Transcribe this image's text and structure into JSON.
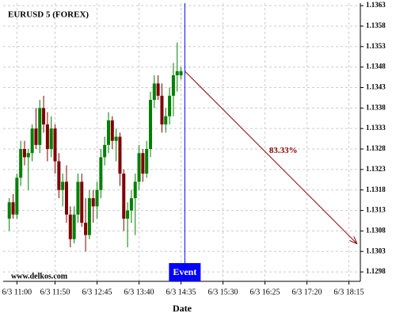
{
  "chart_data": {
    "type": "candlestick",
    "title": "EURUSD 5 (FOREX)",
    "xlabel": "Date",
    "watermark": "www.delkos.com",
    "x": [
      "6/3 10:50",
      "6/3 10:55",
      "6/3 11:00",
      "6/3 11:05",
      "6/3 11:10",
      "6/3 11:15",
      "6/3 11:20",
      "6/3 11:25",
      "6/3 11:30",
      "6/3 11:35",
      "6/3 11:40",
      "6/3 11:45",
      "6/3 11:50",
      "6/3 11:55",
      "6/3 12:00",
      "6/3 12:05",
      "6/3 12:10",
      "6/3 12:15",
      "6/3 12:20",
      "6/3 12:25",
      "6/3 12:30",
      "6/3 12:35",
      "6/3 12:40",
      "6/3 12:45",
      "6/3 12:50",
      "6/3 12:55",
      "6/3 13:00",
      "6/3 13:05",
      "6/3 13:10",
      "6/3 13:15",
      "6/3 13:20",
      "6/3 13:25",
      "6/3 13:30",
      "6/3 13:35",
      "6/3 13:40",
      "6/3 13:45",
      "6/3 13:50",
      "6/3 13:55",
      "6/3 14:00",
      "6/3 14:05",
      "6/3 14:10",
      "6/3 14:15",
      "6/3 14:20",
      "6/3 14:25",
      "6/3 14:30",
      "6/3 14:35"
    ],
    "open": [
      1.1311,
      1.1315,
      1.1312,
      1.1321,
      1.1328,
      1.1326,
      1.1327,
      1.1333,
      1.1329,
      1.1338,
      1.1334,
      1.1328,
      1.1333,
      1.1325,
      1.1318,
      1.132,
      1.1312,
      1.1306,
      1.1312,
      1.132,
      1.131,
      1.1307,
      1.1316,
      1.1314,
      1.1318,
      1.1326,
      1.1329,
      1.1335,
      1.133,
      1.1331,
      1.1322,
      1.1311,
      1.1313,
      1.1316,
      1.132,
      1.1327,
      1.1322,
      1.1328,
      1.134,
      1.1344,
      1.1341,
      1.1334,
      1.1336,
      1.1341,
      1.1346,
      1.1346
    ],
    "high": [
      1.1316,
      1.1317,
      1.1322,
      1.133,
      1.133,
      1.1328,
      1.1334,
      1.1338,
      1.134,
      1.1341,
      1.1337,
      1.1336,
      1.1334,
      1.1327,
      1.1322,
      1.1324,
      1.1314,
      1.1314,
      1.1322,
      1.1322,
      1.1316,
      1.1318,
      1.1318,
      1.132,
      1.1328,
      1.1331,
      1.1337,
      1.1336,
      1.1333,
      1.1332,
      1.1323,
      1.1315,
      1.1318,
      1.1322,
      1.1329,
      1.1328,
      1.133,
      1.1342,
      1.1346,
      1.1346,
      1.1344,
      1.1338,
      1.1343,
      1.1349,
      1.1354,
      1.1348
    ],
    "low": [
      1.1308,
      1.1311,
      1.1311,
      1.1319,
      1.1324,
      1.1318,
      1.1325,
      1.1328,
      1.1327,
      1.1332,
      1.1325,
      1.1326,
      1.1322,
      1.1316,
      1.1314,
      1.131,
      1.1304,
      1.1305,
      1.131,
      1.1309,
      1.1303,
      1.1306,
      1.131,
      1.1311,
      1.1316,
      1.1324,
      1.1327,
      1.1328,
      1.1325,
      1.1319,
      1.1308,
      1.1304,
      1.131,
      1.1307,
      1.1318,
      1.132,
      1.1321,
      1.1326,
      1.1338,
      1.134,
      1.1332,
      1.1332,
      1.1334,
      1.1336,
      1.1342,
      1.1345
    ],
    "close": [
      1.1315,
      1.1312,
      1.1321,
      1.1328,
      1.1326,
      1.1327,
      1.1333,
      1.1329,
      1.1338,
      1.1334,
      1.1328,
      1.1333,
      1.1325,
      1.1318,
      1.132,
      1.1312,
      1.1306,
      1.1312,
      1.132,
      1.131,
      1.1307,
      1.1316,
      1.1314,
      1.1318,
      1.1326,
      1.1329,
      1.1335,
      1.133,
      1.1331,
      1.1322,
      1.1311,
      1.1313,
      1.1316,
      1.132,
      1.1327,
      1.1322,
      1.1328,
      1.134,
      1.1344,
      1.1341,
      1.1334,
      1.1336,
      1.1341,
      1.1346,
      1.1347,
      1.1347
    ],
    "up_color": "#008000",
    "down_color": "#800000",
    "xlim": [
      "6/3 10:42",
      "6/3 18:30"
    ],
    "xticks": [
      "6/3 11:00",
      "6/3 11:50",
      "6/3 12:45",
      "6/3 13:40",
      "6/3 14:35",
      "6/3 15:30",
      "6/3 16:25",
      "6/3 17:20",
      "6/3 18:15"
    ],
    "ylim": [
      1.12957,
      1.13636
    ],
    "yticks": [
      1.1298,
      1.1303,
      1.1308,
      1.1313,
      1.1318,
      1.1323,
      1.1328,
      1.1333,
      1.1338,
      1.1343,
      1.1348,
      1.1353,
      1.1358,
      1.1363
    ],
    "grid": true,
    "event": {
      "label": "Event",
      "x": "6/3 14:40",
      "color": "#0000ff"
    },
    "projection": {
      "from_x": "6/3 14:40",
      "from_y": 1.1347,
      "to_x": "6/3 18:25",
      "to_y": 1.1305,
      "label": "83.33%",
      "color": "#8b0000"
    }
  }
}
